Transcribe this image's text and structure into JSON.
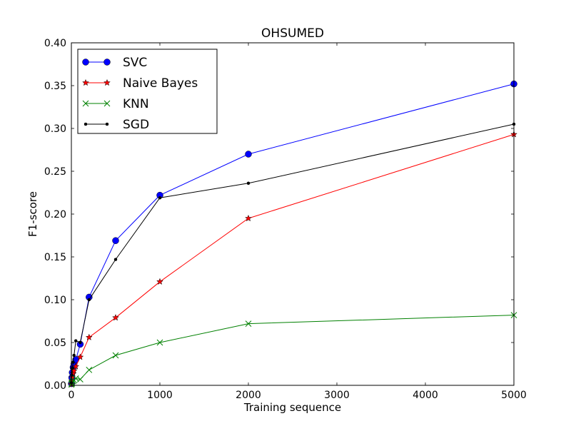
{
  "chart_data": {
    "type": "line",
    "title": "OHSUMED",
    "xlabel": "Training sequence",
    "ylabel": "F1-score",
    "xlim": [
      0,
      5000
    ],
    "ylim": [
      0,
      0.4
    ],
    "x_ticks": [
      0,
      1000,
      2000,
      3000,
      4000,
      5000
    ],
    "x_tick_labels": [
      "0",
      "1000",
      "2000",
      "3000",
      "4000",
      "5000"
    ],
    "y_ticks": [
      0,
      0.05,
      0.1,
      0.15,
      0.2,
      0.25,
      0.3,
      0.35,
      0.4
    ],
    "y_tick_labels": [
      "0.00",
      "0.05",
      "0.10",
      "0.15",
      "0.20",
      "0.25",
      "0.30",
      "0.35",
      "0.40"
    ],
    "grid": false,
    "legend_position": "top-left",
    "series": [
      {
        "name": "SVC",
        "color": "#0000ff",
        "marker": "circle",
        "x": [
          1,
          5,
          10,
          20,
          30,
          50,
          100,
          200,
          500,
          1000,
          2000,
          5000
        ],
        "y": [
          0.002,
          0.009,
          0.015,
          0.021,
          0.025,
          0.03,
          0.048,
          0.103,
          0.169,
          0.222,
          0.27,
          0.352
        ]
      },
      {
        "name": "Naive Bayes",
        "color": "#ff0000",
        "marker": "star",
        "x": [
          1,
          5,
          10,
          20,
          30,
          50,
          100,
          200,
          500,
          1000,
          2000,
          5000
        ],
        "y": [
          0.001,
          0.005,
          0.009,
          0.014,
          0.017,
          0.022,
          0.033,
          0.056,
          0.079,
          0.121,
          0.195,
          0.293
        ]
      },
      {
        "name": "KNN",
        "color": "#008000",
        "marker": "x",
        "x": [
          1,
          5,
          10,
          20,
          30,
          50,
          100,
          200,
          500,
          1000,
          2000,
          5000
        ],
        "y": [
          0.001,
          0.002,
          0.003,
          0.005,
          0.006,
          0.008,
          0.007,
          0.018,
          0.035,
          0.05,
          0.072,
          0.082
        ]
      },
      {
        "name": "SGD",
        "color": "#000000",
        "marker": "dot",
        "x": [
          1,
          5,
          10,
          20,
          30,
          50,
          100,
          200,
          500,
          1000,
          2000,
          5000
        ],
        "y": [
          0.003,
          0.012,
          0.02,
          0.027,
          0.035,
          0.052,
          0.05,
          0.1,
          0.147,
          0.219,
          0.236,
          0.305
        ]
      }
    ]
  }
}
